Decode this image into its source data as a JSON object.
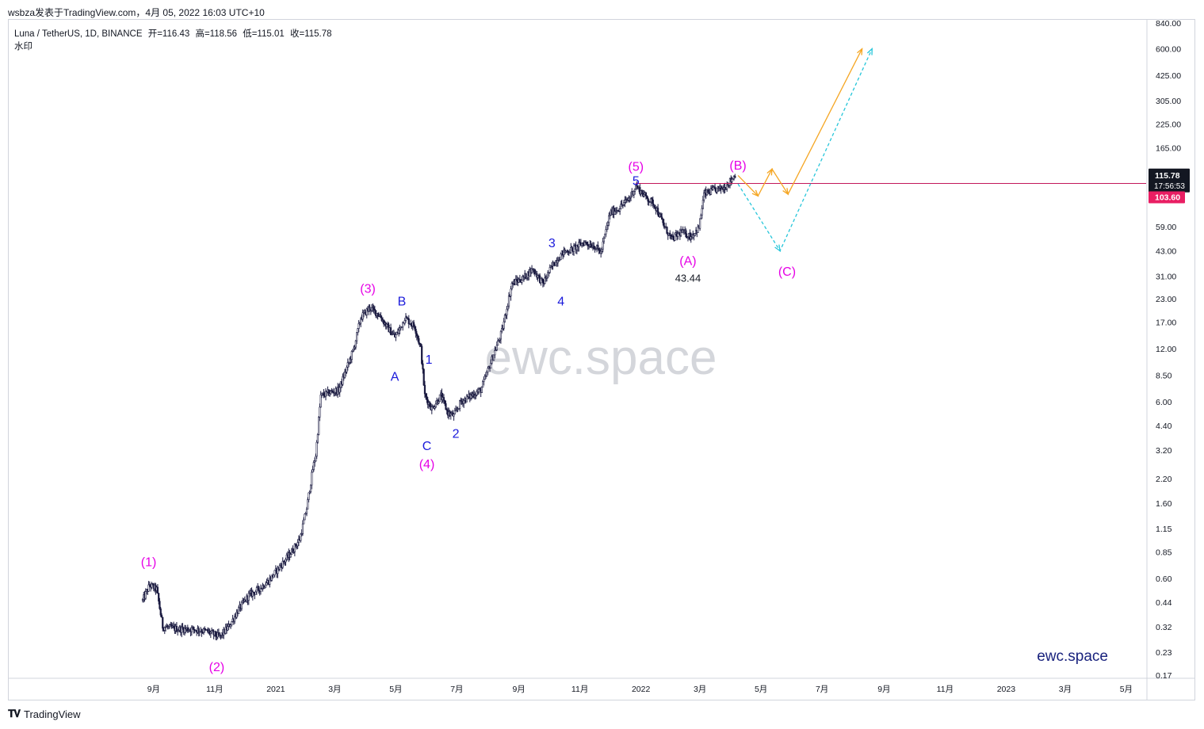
{
  "header": {
    "publish_line": "wsbza发表于TradingView.com，4月 05, 2022 16:03 UTC+10"
  },
  "legend": {
    "symbol": "Luna / TetherUS, 1D, BINANCE",
    "open": "开=116.43",
    "high": "高=118.56",
    "low": "低=115.01",
    "close": "收=115.78",
    "sub": "水印"
  },
  "footer": {
    "brand": "TradingView"
  },
  "colors": {
    "candle": "#1a1a40",
    "wave_primary": "#e600e6",
    "wave_minor": "#1a1adb",
    "path_orange": "#f5a623",
    "path_cyan": "#26c6da",
    "hline": "#c2185b",
    "price_badge": "#131722",
    "level_badge": "#e91e63"
  },
  "chart_data": {
    "type": "candlestick",
    "scale": "log",
    "ylim": [
      0.17,
      840
    ],
    "y_ticks": [
      "840.00",
      "600.00",
      "425.00",
      "305.00",
      "225.00",
      "165.00",
      "115.78",
      "103.60",
      "59.00",
      "43.00",
      "31.00",
      "23.00",
      "17.00",
      "12.00",
      "8.50",
      "6.00",
      "4.40",
      "3.20",
      "2.20",
      "1.60",
      "1.15",
      "0.85",
      "0.60",
      "0.44",
      "0.32",
      "0.23",
      "0.17"
    ],
    "y_tick_values": [
      840,
      600,
      425,
      305,
      225,
      165,
      115.78,
      103.6,
      59,
      43,
      31,
      23,
      17,
      12,
      8.5,
      6,
      4.4,
      3.2,
      2.2,
      1.6,
      1.15,
      0.85,
      0.6,
      0.44,
      0.32,
      0.23,
      0.17
    ],
    "x_ticks": [
      "9月",
      "11月",
      "2021",
      "3月",
      "5月",
      "7月",
      "9月",
      "11月",
      "2022",
      "3月",
      "5月",
      "7月",
      "9月",
      "11月",
      "2023",
      "3月",
      "5月"
    ],
    "x_tick_dates": [
      "2020-09-01",
      "2020-11-01",
      "2021-01-01",
      "2021-03-01",
      "2021-05-01",
      "2021-07-01",
      "2021-09-01",
      "2021-11-01",
      "2022-01-01",
      "2022-03-01",
      "2022-05-01",
      "2022-07-01",
      "2022-09-01",
      "2022-11-01",
      "2023-01-01",
      "2023-03-01",
      "2023-05-01"
    ],
    "x_start_date": "2020-08-21",
    "x_end_date": "2023-06-01",
    "price_path": [
      [
        "2020-08-21",
        0.45
      ],
      [
        "2020-08-28",
        0.55
      ],
      [
        "2020-09-04",
        0.52
      ],
      [
        "2020-09-10",
        0.32
      ],
      [
        "2020-09-25",
        0.31
      ],
      [
        "2020-10-10",
        0.31
      ],
      [
        "2020-10-25",
        0.3
      ],
      [
        "2020-11-06",
        0.28
      ],
      [
        "2020-11-15",
        0.32
      ],
      [
        "2020-11-25",
        0.4
      ],
      [
        "2020-12-05",
        0.48
      ],
      [
        "2020-12-15",
        0.52
      ],
      [
        "2020-12-25",
        0.58
      ],
      [
        "2021-01-05",
        0.7
      ],
      [
        "2021-01-15",
        0.82
      ],
      [
        "2021-01-25",
        1.0
      ],
      [
        "2021-02-01",
        1.5
      ],
      [
        "2021-02-07",
        2.5
      ],
      [
        "2021-02-10",
        3.0
      ],
      [
        "2021-02-15",
        6.5
      ],
      [
        "2021-02-25",
        6.8
      ],
      [
        "2021-03-05",
        7.0
      ],
      [
        "2021-03-12",
        9.0
      ],
      [
        "2021-03-20",
        12.0
      ],
      [
        "2021-03-27",
        18.0
      ],
      [
        "2021-04-05",
        20.5
      ],
      [
        "2021-04-15",
        18.5
      ],
      [
        "2021-04-22",
        16.0
      ],
      [
        "2021-04-30",
        14.0
      ],
      [
        "2021-05-05",
        15.5
      ],
      [
        "2021-05-10",
        18.0
      ],
      [
        "2021-05-20",
        16.0
      ],
      [
        "2021-05-26",
        12.0
      ],
      [
        "2021-05-30",
        6.5
      ],
      [
        "2021-06-06",
        5.5
      ],
      [
        "2021-06-15",
        6.5
      ],
      [
        "2021-06-22",
        5.2
      ],
      [
        "2021-06-28",
        5.0
      ],
      [
        "2021-07-05",
        6.0
      ],
      [
        "2021-07-15",
        6.5
      ],
      [
        "2021-07-25",
        7.0
      ],
      [
        "2021-08-01",
        9.0
      ],
      [
        "2021-08-15",
        15.0
      ],
      [
        "2021-08-25",
        28.0
      ],
      [
        "2021-09-05",
        30.0
      ],
      [
        "2021-09-15",
        34.0
      ],
      [
        "2021-09-25",
        28.0
      ],
      [
        "2021-10-05",
        36.0
      ],
      [
        "2021-10-15",
        42.0
      ],
      [
        "2021-10-25",
        44.0
      ],
      [
        "2021-11-05",
        48.0
      ],
      [
        "2021-11-15",
        46.0
      ],
      [
        "2021-11-22",
        42.0
      ],
      [
        "2021-12-01",
        70.0
      ],
      [
        "2021-12-10",
        75.0
      ],
      [
        "2021-12-20",
        85.0
      ],
      [
        "2021-12-27",
        100.0
      ],
      [
        "2022-01-05",
        88.0
      ],
      [
        "2022-01-15",
        78.0
      ],
      [
        "2022-01-25",
        58.0
      ],
      [
        "2022-02-01",
        50.0
      ],
      [
        "2022-02-10",
        55.0
      ],
      [
        "2022-02-20",
        52.0
      ],
      [
        "2022-02-28",
        58.0
      ],
      [
        "2022-03-05",
        90.0
      ],
      [
        "2022-03-15",
        95.0
      ],
      [
        "2022-03-25",
        98.0
      ],
      [
        "2022-04-01",
        108.0
      ],
      [
        "2022-04-05",
        115.78
      ]
    ],
    "horizontal_line": 103.6,
    "current_price": "115.78",
    "countdown": "17:56:53",
    "level_label": "103.60",
    "price_annotation": "43.44",
    "projection_orange": [
      [
        "2022-04-08",
        115
      ],
      [
        "2022-04-28",
        88
      ],
      [
        "2022-05-12",
        125
      ],
      [
        "2022-05-28",
        90
      ],
      [
        "2022-08-10",
        600
      ]
    ],
    "projection_cyan": [
      [
        "2022-04-08",
        103
      ],
      [
        "2022-05-20",
        43
      ],
      [
        "2022-08-20",
        600
      ]
    ],
    "wave_labels_primary": [
      {
        "label": "(1)",
        "date": "2020-08-27",
        "price": 0.75
      },
      {
        "label": "(2)",
        "date": "2020-11-03",
        "price": 0.19
      },
      {
        "label": "(3)",
        "date": "2021-04-03",
        "price": 26.5
      },
      {
        "label": "(4)",
        "date": "2021-06-01",
        "price": 2.68
      },
      {
        "label": "(5)",
        "date": "2021-12-27",
        "price": 130
      },
      {
        "label": "(A)",
        "date": "2022-02-17",
        "price": 38
      },
      {
        "label": "(B)",
        "date": "2022-04-08",
        "price": 132
      },
      {
        "label": "(C)",
        "date": "2022-05-27",
        "price": 33
      }
    ],
    "wave_labels_minor": [
      {
        "label": "A",
        "date": "2021-04-30",
        "price": 8.4
      },
      {
        "label": "B",
        "date": "2021-05-07",
        "price": 22.5
      },
      {
        "label": "C",
        "date": "2021-06-01",
        "price": 3.4
      },
      {
        "label": "1",
        "date": "2021-06-03",
        "price": 10.5
      },
      {
        "label": "2",
        "date": "2021-06-30",
        "price": 4.0
      },
      {
        "label": "3",
        "date": "2021-10-04",
        "price": 48
      },
      {
        "label": "4",
        "date": "2021-10-13",
        "price": 22.5
      },
      {
        "label": "5",
        "date": "2021-12-27",
        "price": 108
      }
    ],
    "watermark": "ewc.space",
    "brand_text": "ewc.space"
  }
}
